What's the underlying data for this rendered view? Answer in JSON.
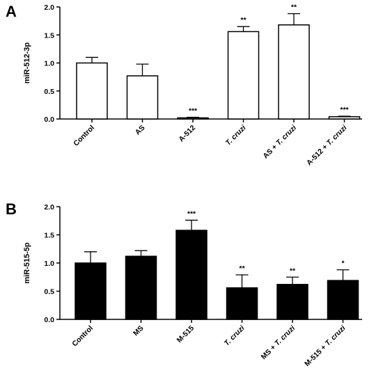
{
  "chart_data": [
    {
      "type": "bar",
      "panel": "A",
      "ylabel": "miR-512-3p",
      "ylim": [
        0,
        2.0
      ],
      "yticks": [
        "0.0",
        "0.5",
        "1.0",
        "1.5",
        "2.0"
      ],
      "bar_fill": "#ffffff",
      "bar_stroke": "#000000",
      "categories": [
        {
          "parts": [
            {
              "text": "Control",
              "italic": false
            }
          ]
        },
        {
          "parts": [
            {
              "text": "AS",
              "italic": false
            }
          ]
        },
        {
          "parts": [
            {
              "text": "A-512",
              "italic": false
            }
          ]
        },
        {
          "parts": [
            {
              "text": "T. cruzi",
              "italic": true
            }
          ]
        },
        {
          "parts": [
            {
              "text": "AS + ",
              "italic": false
            },
            {
              "text": "T. cruzi",
              "italic": true
            }
          ]
        },
        {
          "parts": [
            {
              "text": "A-512 + ",
              "italic": false
            },
            {
              "text": "T. cruzi",
              "italic": true
            }
          ]
        }
      ],
      "values": [
        1.0,
        0.77,
        0.02,
        1.56,
        1.68,
        0.04
      ],
      "errors": [
        0.1,
        0.21,
        0.01,
        0.09,
        0.2,
        0.01
      ],
      "significance": [
        "",
        "",
        "***",
        "**",
        "**",
        "***"
      ]
    },
    {
      "type": "bar",
      "panel": "B",
      "ylabel": "miR-515-5p",
      "ylim": [
        0,
        2.0
      ],
      "yticks": [
        "0.0",
        "0.5",
        "1.0",
        "1.5",
        "2.0"
      ],
      "bar_fill": "#000000",
      "bar_stroke": "#000000",
      "categories": [
        {
          "parts": [
            {
              "text": "Control",
              "italic": false
            }
          ]
        },
        {
          "parts": [
            {
              "text": "MS",
              "italic": false
            }
          ]
        },
        {
          "parts": [
            {
              "text": "M-515",
              "italic": false
            }
          ]
        },
        {
          "parts": [
            {
              "text": "T. cruzi",
              "italic": true
            }
          ]
        },
        {
          "parts": [
            {
              "text": "MS + ",
              "italic": false
            },
            {
              "text": "T. cruzi",
              "italic": true
            }
          ]
        },
        {
          "parts": [
            {
              "text": "M-515 + ",
              "italic": false
            },
            {
              "text": "T. cruzi",
              "italic": true
            }
          ]
        }
      ],
      "values": [
        1.0,
        1.12,
        1.58,
        0.56,
        0.62,
        0.69
      ],
      "errors": [
        0.2,
        0.1,
        0.18,
        0.23,
        0.13,
        0.19
      ],
      "significance": [
        "",
        "",
        "***",
        "**",
        "**",
        "*"
      ]
    }
  ]
}
